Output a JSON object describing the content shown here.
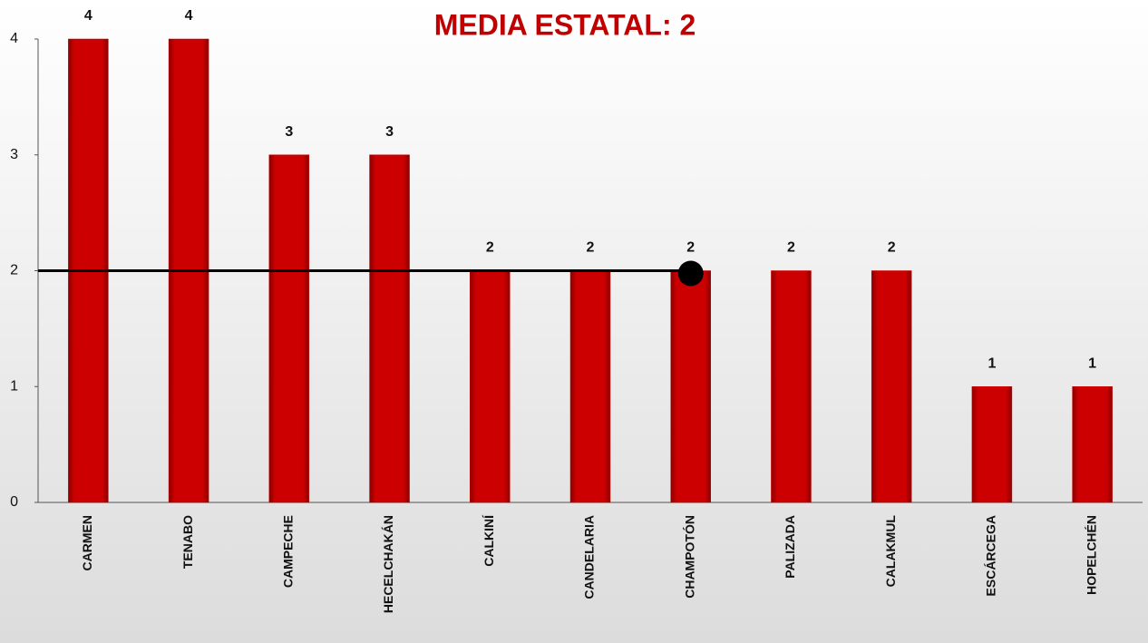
{
  "chart_data": {
    "type": "bar",
    "title": "MEDIA ESTATAL: 2",
    "categories": [
      "CARMEN",
      "TENABO",
      "CAMPECHE",
      "HECELCHAKÁN",
      "CALKINÍ",
      "CANDELARIA",
      "CHAMPOTÓN",
      "PALIZADA",
      "CALAKMUL",
      "ESCÁRCEGA",
      "HOPELCHÉN"
    ],
    "values": [
      4,
      4,
      3,
      3,
      2,
      2,
      2,
      2,
      2,
      1,
      1
    ],
    "color": "#cc0000",
    "ylim": [
      0,
      4
    ],
    "yticks": [
      0,
      1,
      2,
      3,
      4
    ],
    "grid": false,
    "reference_line": 2
  }
}
